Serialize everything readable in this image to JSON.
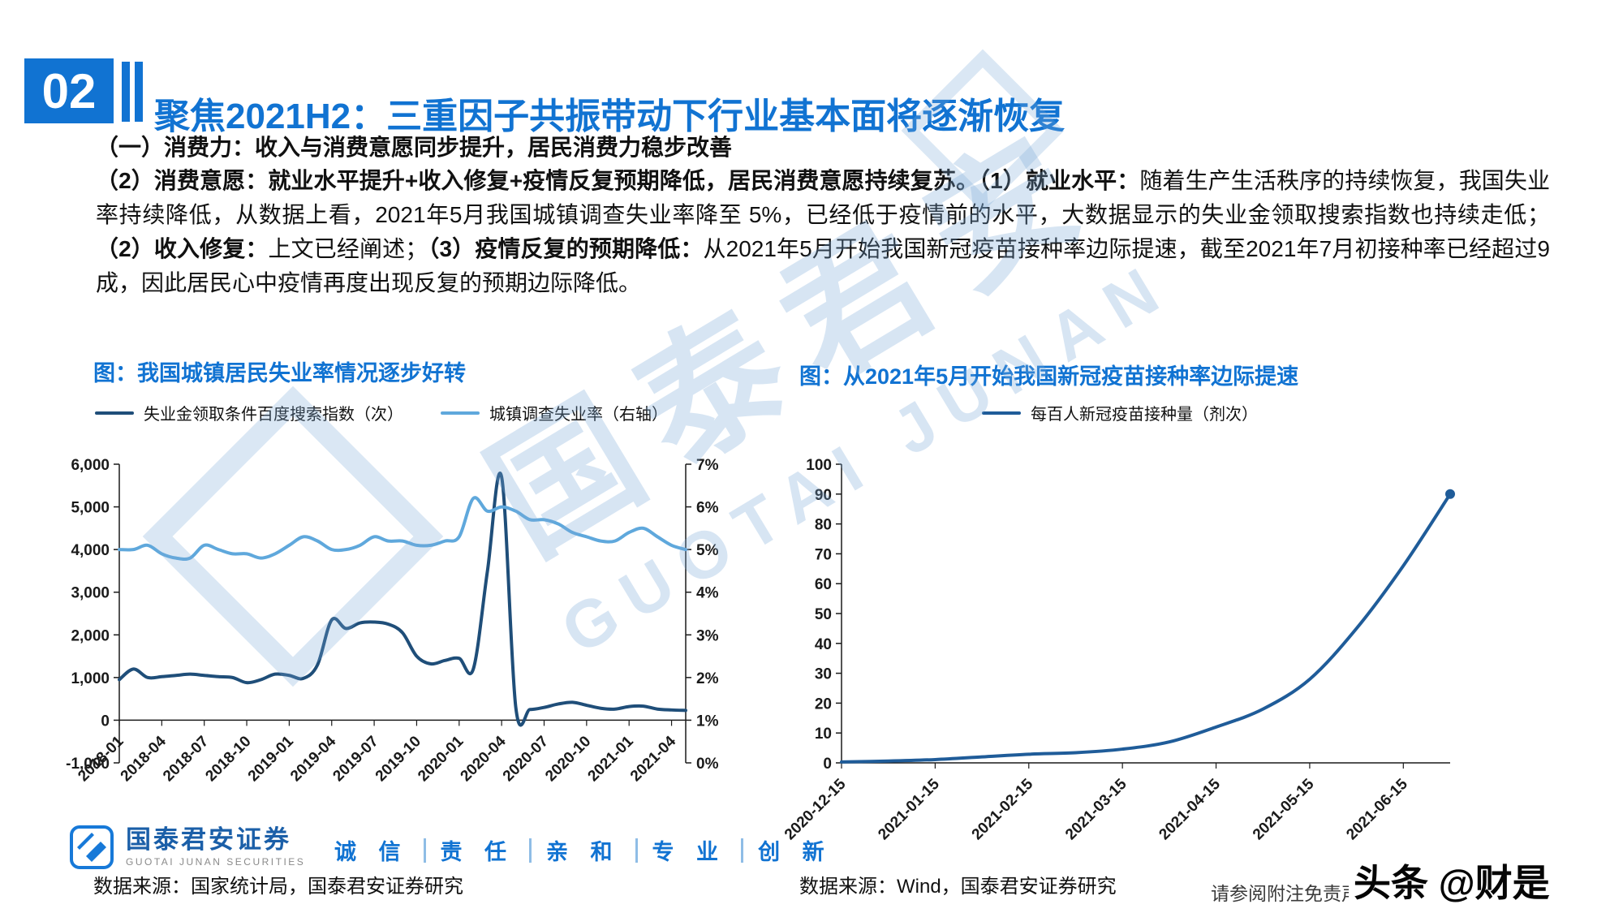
{
  "page": {
    "section_number": "02",
    "title": "聚焦2021H2：三重因子共振带动下行业基本面将逐渐恢复",
    "subtitle_bold": "（一）消费力：收入与消费意愿同步提升，居民消费力稳步改善",
    "paragraph_segments": [
      {
        "text": "（2）消费意愿：就业水平提升+收入修复+疫情反复预期降低，居民消费意愿持续复苏。（1）就业水平：",
        "bold": true
      },
      {
        "text": "随着生产生活秩序的持续恢复，我国失业率持续降低，从数据上看，2021年5月我国城镇调查失业率降至 5%，已经低于疫情前的水平，大数据显示的失业金领取搜索指数也持续走低；",
        "bold": false
      },
      {
        "text": "（2）收入修复：",
        "bold": true
      },
      {
        "text": "上文已经阐述；",
        "bold": false
      },
      {
        "text": "（3）疫情反复的预期降低：",
        "bold": true
      },
      {
        "text": "从2021年5月开始我国新冠疫苗接种率边际提速，截至2021年7月初接种率已经超过9成，因此居民心中疫情再度出现反复的预期边际降低。",
        "bold": false
      }
    ]
  },
  "colors": {
    "accent_blue": "#1173D2",
    "line_dark": "#1F4E79",
    "line_light": "#5FA8DC",
    "line_vaccine": "#1F5C99",
    "watermark_blue": "#7AAAD8"
  },
  "chart_data": [
    {
      "type": "line",
      "title": "图：我国城镇居民失业率情况逐步好转",
      "x": [
        "2018-01",
        "2018-02",
        "2018-03",
        "2018-04",
        "2018-05",
        "2018-06",
        "2018-07",
        "2018-08",
        "2018-09",
        "2018-10",
        "2018-11",
        "2018-12",
        "2019-01",
        "2019-02",
        "2019-03",
        "2019-04",
        "2019-05",
        "2019-06",
        "2019-07",
        "2019-08",
        "2019-09",
        "2019-10",
        "2019-11",
        "2019-12",
        "2020-01",
        "2020-02",
        "2020-03",
        "2020-04",
        "2020-05",
        "2020-06",
        "2020-07",
        "2020-08",
        "2020-09",
        "2020-10",
        "2020-11",
        "2020-12",
        "2021-01",
        "2021-02",
        "2021-03",
        "2021-04",
        "2021-05"
      ],
      "x_ticks": [
        "2018-01",
        "2018-04",
        "2018-07",
        "2018-10",
        "2019-01",
        "2019-04",
        "2019-07",
        "2019-10",
        "2020-01",
        "2020-04",
        "2020-07",
        "2020-10",
        "2021-01",
        "2021-04"
      ],
      "y_left": {
        "min": -1000,
        "max": 6000,
        "step": 1000
      },
      "y_right": {
        "min": 0,
        "max": 7,
        "step": 1,
        "suffix": "%"
      },
      "series": [
        {
          "name": "失业金领取条件百度搜索指数（次）",
          "axis": "left",
          "color": "#1F4E79",
          "values": [
            950,
            1200,
            1000,
            1020,
            1050,
            1080,
            1050,
            1020,
            1000,
            880,
            950,
            1080,
            1050,
            980,
            1300,
            2350,
            2150,
            2280,
            2300,
            2250,
            2050,
            1500,
            1320,
            1400,
            1450,
            1200,
            3500,
            5700,
            300,
            250,
            300,
            380,
            420,
            350,
            280,
            260,
            320,
            330,
            260,
            240,
            230
          ]
        },
        {
          "name": "城镇调查失业率（右轴）",
          "axis": "right",
          "color": "#5FA8DC",
          "values": [
            5.0,
            5.0,
            5.1,
            4.9,
            4.8,
            4.8,
            5.1,
            5.0,
            4.9,
            4.9,
            4.8,
            4.9,
            5.1,
            5.3,
            5.2,
            5.0,
            5.0,
            5.1,
            5.3,
            5.2,
            5.2,
            5.1,
            5.1,
            5.2,
            5.3,
            6.2,
            5.9,
            6.0,
            5.9,
            5.7,
            5.7,
            5.6,
            5.4,
            5.3,
            5.2,
            5.2,
            5.4,
            5.5,
            5.3,
            5.1,
            5.0
          ]
        }
      ],
      "source_note": "数据来源：国家统计局，国泰君安证券研究"
    },
    {
      "type": "line",
      "title": "图：从2021年5月开始我国新冠疫苗接种率边际提速",
      "x": [
        "2020-12-15",
        "2021-01-01",
        "2021-01-15",
        "2021-02-01",
        "2021-02-15",
        "2021-03-01",
        "2021-03-15",
        "2021-04-01",
        "2021-04-15",
        "2021-05-01",
        "2021-05-15",
        "2021-06-01",
        "2021-06-15",
        "2021-07-01"
      ],
      "x_ticks": [
        "2020-12-15",
        "2021-01-15",
        "2021-02-15",
        "2021-03-15",
        "2021-04-15",
        "2021-05-15",
        "2021-06-15"
      ],
      "y_left": {
        "min": 0,
        "max": 100,
        "step": 10
      },
      "series": [
        {
          "name": "每百人新冠疫苗接种量（剂次）",
          "axis": "left",
          "color": "#1F5C99",
          "end_marker": true,
          "values": [
            0.3,
            0.6,
            1.1,
            2.0,
            2.9,
            3.4,
            4.6,
            7.0,
            12.0,
            18.0,
            28.0,
            45.0,
            66.0,
            90.0
          ]
        }
      ],
      "source_note": "数据来源：Wind，国泰君安证券研究"
    }
  ],
  "footer": {
    "logo_text": "国泰君安证券",
    "logo_sub": "GUOTAI JUNAN SECURITIES",
    "slogan": [
      "诚 信",
      "责 任",
      "亲 和",
      "专 业",
      "创 新"
    ],
    "disclaimer": "请参阅附注免责声明",
    "watermark_badge": "头条 @财是"
  },
  "watermark": {
    "cn": "国泰君安",
    "en": "GUOTAI JUNAN"
  }
}
